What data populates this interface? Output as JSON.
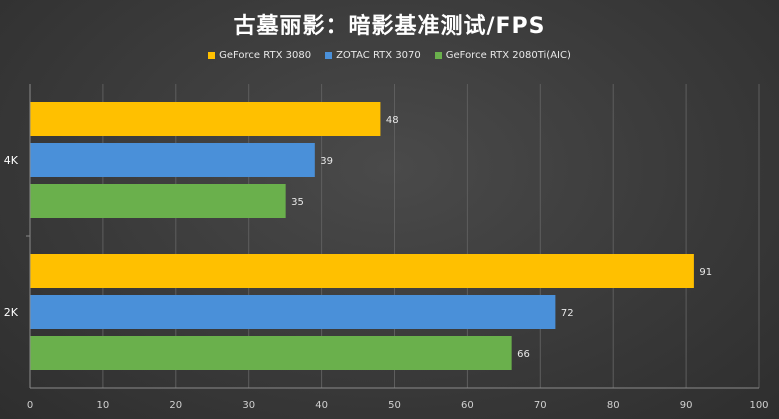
{
  "chart_data": {
    "type": "bar",
    "orientation": "horizontal",
    "title": "古墓丽影：暗影基准测试/FPS",
    "categories": [
      "4K",
      "2K"
    ],
    "series": [
      {
        "name": "GeForce RTX 3080",
        "color": "#ffc000",
        "values": [
          48,
          91
        ]
      },
      {
        "name": "ZOTAC RTX 3070",
        "color": "#4a90d9",
        "values": [
          39,
          72
        ]
      },
      {
        "name": "GeForce RTX 2080Ti(AIC)",
        "color": "#6ab04c",
        "values": [
          35,
          66
        ]
      }
    ],
    "xlim": [
      0,
      100
    ],
    "xticks": [
      0,
      10,
      20,
      30,
      40,
      50,
      60,
      70,
      80,
      90,
      100
    ],
    "grid": true,
    "legend_position": "top-center",
    "data_labels": true
  }
}
